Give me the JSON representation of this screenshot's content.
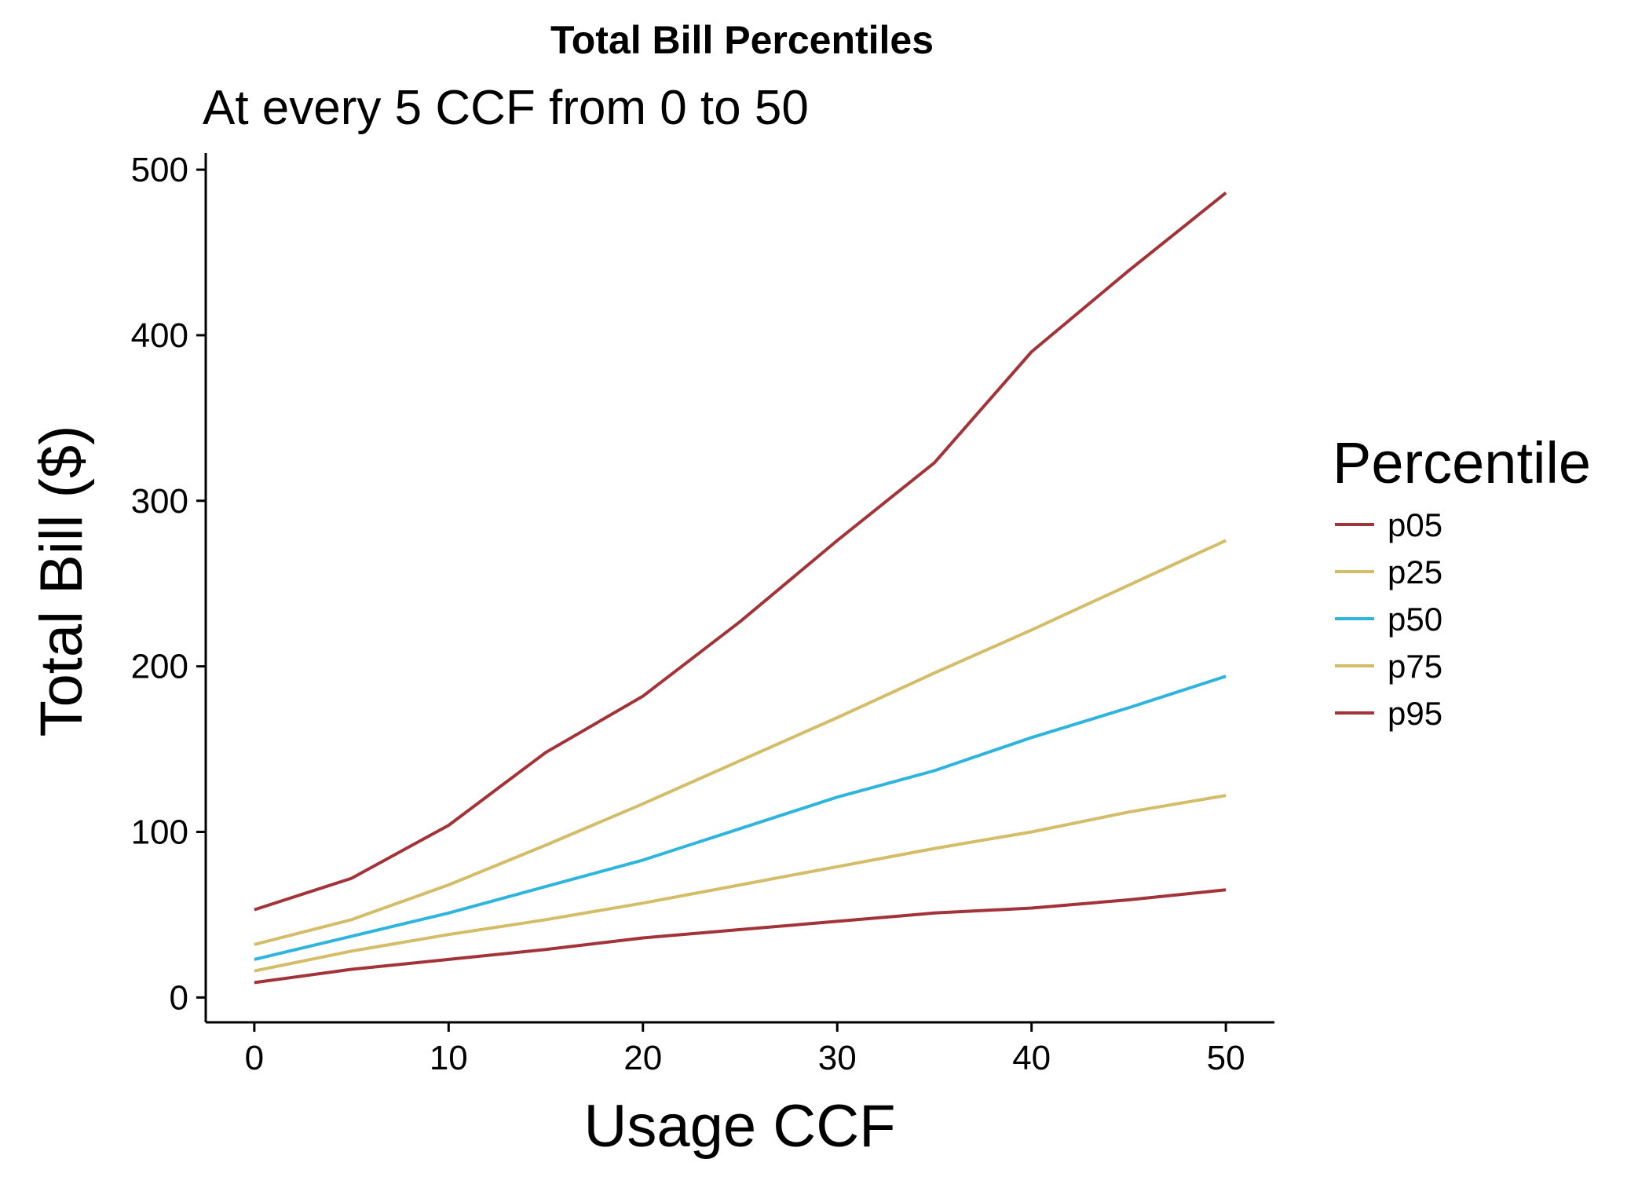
{
  "chart_data": {
    "type": "line",
    "title": "Total Bill Percentiles",
    "subtitle": "At every 5 CCF from 0 to 50",
    "xlabel": "Usage CCF",
    "ylabel": "Total Bill ($)",
    "xlim": [
      -2.5,
      52.5
    ],
    "ylim": [
      -15,
      510
    ],
    "xticks": [
      0,
      10,
      20,
      30,
      40,
      50
    ],
    "yticks": [
      0,
      100,
      200,
      300,
      400,
      500
    ],
    "grid": false,
    "legend": {
      "title": "Percentile",
      "position": "right"
    },
    "x": [
      0,
      5,
      10,
      15,
      20,
      25,
      30,
      35,
      40,
      45,
      50
    ],
    "series": [
      {
        "name": "p05",
        "color": "#a23338",
        "values": [
          9,
          17,
          23,
          29,
          36,
          41,
          46,
          51,
          54,
          59,
          65
        ]
      },
      {
        "name": "p25",
        "color": "#d4bd68",
        "values": [
          16,
          28,
          38,
          47,
          57,
          68,
          79,
          90,
          100,
          112,
          122
        ]
      },
      {
        "name": "p50",
        "color": "#2fb5dd",
        "values": [
          23,
          37,
          51,
          67,
          83,
          102,
          121,
          137,
          157,
          175,
          194
        ]
      },
      {
        "name": "p75",
        "color": "#d4bd68",
        "values": [
          32,
          47,
          68,
          92,
          117,
          143,
          169,
          196,
          222,
          249,
          276
        ]
      },
      {
        "name": "p95",
        "color": "#a23338",
        "values": [
          53,
          72,
          104,
          148,
          182,
          227,
          276,
          323,
          390,
          439,
          486
        ]
      }
    ]
  }
}
